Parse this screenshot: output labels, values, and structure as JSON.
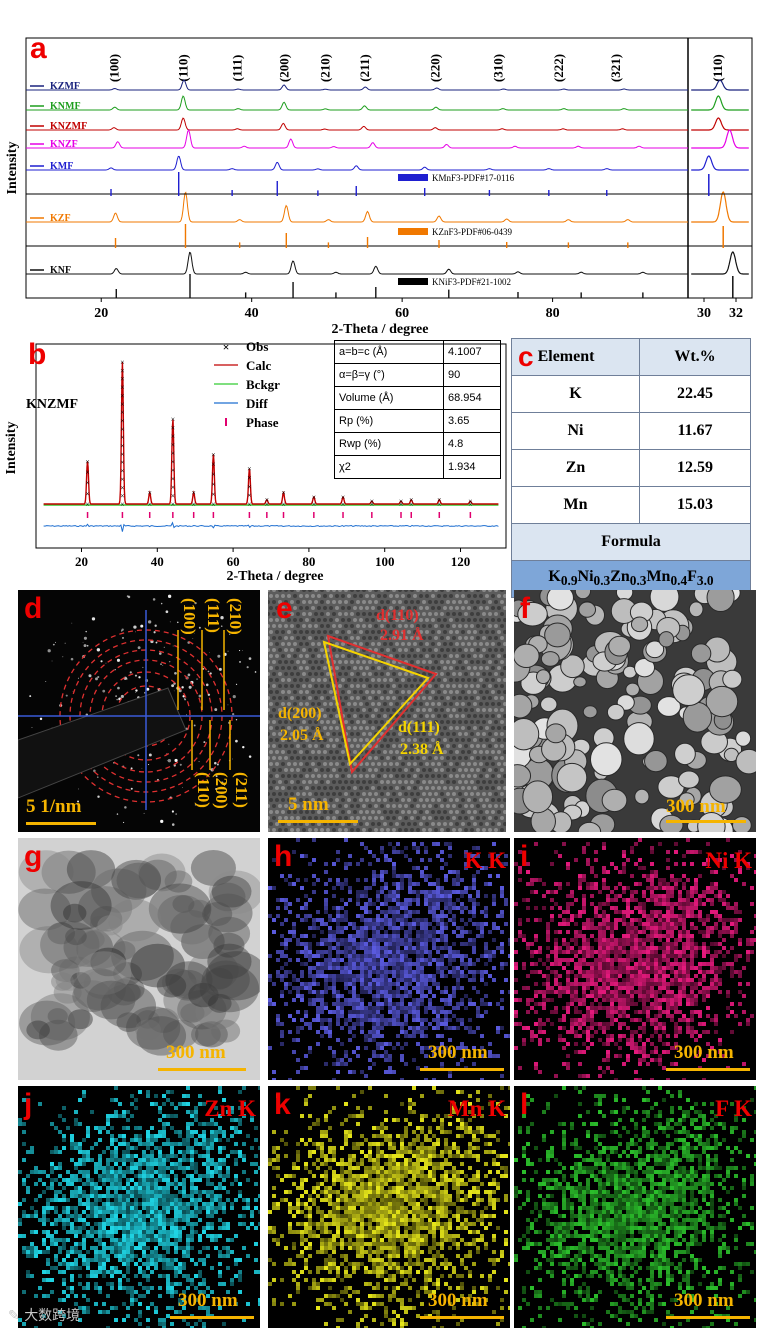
{
  "panel_a": {
    "label": "a",
    "ylabel": "Intensity",
    "xlabel": "2-Theta / degree",
    "xticks_main": [
      "20",
      "40",
      "60",
      "80"
    ],
    "xticks_zoom": [
      "30",
      "32"
    ],
    "hkl": [
      "(100)",
      "(110)",
      "(111)",
      "(200)",
      "(210)",
      "(211)",
      "(220)",
      "(310)",
      "(222)",
      "(321)",
      "(110)"
    ],
    "refs": [
      "KMnF3-PDF#17-0116",
      "KZnF3-PDF#06-0439",
      "KNiF3-PDF#21-1002"
    ]
  },
  "chart_data": [
    {
      "type": "line",
      "panel": "a",
      "title": "",
      "xlabel": "2-Theta / degree",
      "ylabel": "Intensity",
      "xlim": [
        10,
        98
      ],
      "series": [
        {
          "name": "KZMF",
          "color": "#1a237e",
          "peaks": [
            [
              21.8,
              0.15
            ],
            [
              31.0,
              1.0
            ],
            [
              38.2,
              0.1
            ],
            [
              44.3,
              0.5
            ],
            [
              49.8,
              0.08
            ],
            [
              55.1,
              0.3
            ],
            [
              64.6,
              0.2
            ],
            [
              73.5,
              0.1
            ],
            [
              81.5,
              0.1
            ],
            [
              89.5,
              0.1
            ]
          ]
        },
        {
          "name": "KNMF",
          "color": "#1e9e1e",
          "peaks": [
            [
              21.8,
              0.2
            ],
            [
              30.9,
              1.0
            ],
            [
              38.2,
              0.1
            ],
            [
              44.3,
              0.55
            ],
            [
              49.8,
              0.08
            ],
            [
              55.0,
              0.3
            ],
            [
              64.5,
              0.2
            ],
            [
              73.4,
              0.1
            ],
            [
              81.5,
              0.1
            ],
            [
              89.5,
              0.1
            ]
          ]
        },
        {
          "name": "KNZMF",
          "color": "#c00000",
          "peaks": [
            [
              21.7,
              0.2
            ],
            [
              30.9,
              1.0
            ],
            [
              38.1,
              0.1
            ],
            [
              44.2,
              0.55
            ],
            [
              49.7,
              0.08
            ],
            [
              54.9,
              0.3
            ],
            [
              64.4,
              0.2
            ],
            [
              73.3,
              0.1
            ],
            [
              81.4,
              0.1
            ],
            [
              89.3,
              0.1
            ]
          ]
        },
        {
          "name": "KNZF",
          "color": "#e600e6",
          "peaks": [
            [
              22.2,
              0.35
            ],
            [
              31.6,
              1.0
            ],
            [
              39.0,
              0.1
            ],
            [
              45.2,
              0.5
            ],
            [
              50.9,
              0.08
            ],
            [
              56.1,
              0.3
            ],
            [
              65.9,
              0.2
            ],
            [
              75.0,
              0.1
            ],
            [
              83.4,
              0.1
            ],
            [
              91.5,
              0.1
            ]
          ]
        },
        {
          "name": "KMF",
          "color": "#1f1fd0",
          "peaks": [
            [
              21.3,
              0.15
            ],
            [
              30.3,
              1.0
            ],
            [
              37.4,
              0.1
            ],
            [
              43.4,
              0.55
            ],
            [
              48.8,
              0.08
            ],
            [
              53.9,
              0.3
            ],
            [
              63.0,
              0.2
            ],
            [
              71.6,
              0.1
            ],
            [
              79.5,
              0.1
            ],
            [
              87.2,
              0.1
            ]
          ]
        },
        {
          "name": "KZF",
          "color": "#f07800",
          "peaks": [
            [
              21.9,
              0.3
            ],
            [
              31.2,
              1.0
            ],
            [
              38.4,
              0.08
            ],
            [
              44.6,
              0.55
            ],
            [
              50.2,
              0.08
            ],
            [
              55.4,
              0.35
            ],
            [
              64.9,
              0.2
            ],
            [
              73.9,
              0.1
            ],
            [
              82.1,
              0.08
            ],
            [
              90.0,
              0.08
            ]
          ]
        },
        {
          "name": "KNF",
          "color": "#111111",
          "peaks": [
            [
              22.0,
              0.25
            ],
            [
              31.8,
              1.0
            ],
            [
              39.2,
              0.08
            ],
            [
              45.5,
              0.6
            ],
            [
              51.2,
              0.08
            ],
            [
              56.5,
              0.35
            ],
            [
              66.2,
              0.22
            ],
            [
              75.4,
              0.1
            ],
            [
              83.8,
              0.08
            ],
            [
              92.0,
              0.08
            ]
          ]
        }
      ]
    },
    {
      "type": "scatter",
      "panel": "b",
      "title": "",
      "sample": "KNZMF",
      "xlabel": "2-Theta / degree",
      "ylabel": "Intensity",
      "xlim": [
        8,
        132
      ],
      "xticks": [
        "20",
        "40",
        "60",
        "80",
        "100",
        "120"
      ],
      "legend": [
        "Obs",
        "Calc",
        "Bckgr",
        "Diff",
        "Phase"
      ],
      "peaks": [
        [
          21.6,
          0.3
        ],
        [
          30.8,
          1.0
        ],
        [
          38.0,
          0.08
        ],
        [
          44.1,
          0.6
        ],
        [
          49.6,
          0.08
        ],
        [
          54.8,
          0.35
        ],
        [
          64.3,
          0.25
        ],
        [
          68.9,
          0.03
        ],
        [
          73.3,
          0.08
        ],
        [
          81.3,
          0.05
        ],
        [
          89.0,
          0.05
        ],
        [
          96.6,
          0.02
        ],
        [
          104.3,
          0.02
        ],
        [
          107.0,
          0.03
        ],
        [
          114.4,
          0.03
        ],
        [
          122.6,
          0.02
        ]
      ]
    }
  ],
  "panel_b": {
    "label": "b",
    "sample": "KNZMF",
    "ylabel": "Intensity",
    "xlabel": "2-Theta / degree",
    "legend": [
      "Obs",
      "Calc",
      "Bckgr",
      "Diff",
      "Phase"
    ],
    "table": [
      {
        "param": "a=b=c (Å)",
        "value": "4.1007"
      },
      {
        "param": "α=β=γ (°)",
        "value": "90"
      },
      {
        "param": "Volume (Å)",
        "value": "68.954"
      },
      {
        "param": "Rp (%)",
        "value": "3.65"
      },
      {
        "param": "Rwp (%)",
        "value": "4.8"
      },
      {
        "param": "χ2",
        "value": "1.934"
      }
    ]
  },
  "panel_c": {
    "label": "c",
    "header": [
      "Element",
      "Wt.%"
    ],
    "rows": [
      [
        "K",
        "22.45"
      ],
      [
        "Ni",
        "11.67"
      ],
      [
        "Zn",
        "12.59"
      ],
      [
        "Mn",
        "15.03"
      ]
    ],
    "formula_label": "Formula",
    "formula": "K0.9Ni0.3Zn0.3Mn0.4F3.0"
  },
  "panel_d": {
    "label": "d",
    "scale": "5 1/nm",
    "rings": [
      "(100)",
      "(111)",
      "(210)",
      "(110)",
      "(200)",
      "(211)"
    ]
  },
  "panel_e": {
    "label": "e",
    "scale": "5 nm",
    "d110": "d(110)",
    "d110v": "2.91 Å",
    "d200": "d(200)",
    "d200v": "2.05 Å",
    "d111": "d(111)",
    "d111v": "2.38 Å"
  },
  "panel_f": {
    "label": "f",
    "scale": "300 nm"
  },
  "panel_g": {
    "label": "g",
    "scale": "300 nm"
  },
  "maps": [
    {
      "label": "h",
      "title": "K K",
      "scale": "300 nm",
      "color": "#5a5adf"
    },
    {
      "label": "i",
      "title": "Ni K",
      "scale": "300 nm",
      "color": "#e6197d"
    },
    {
      "label": "j",
      "title": "Zn K",
      "scale": "300 nm",
      "color": "#1fd6e6"
    },
    {
      "label": "k",
      "title": "Mn K",
      "scale": "300 nm",
      "color": "#e6e619"
    },
    {
      "label": "l",
      "title": "F K",
      "scale": "300 nm",
      "color": "#2bbf2b"
    }
  ],
  "watermark": "大数跨境"
}
